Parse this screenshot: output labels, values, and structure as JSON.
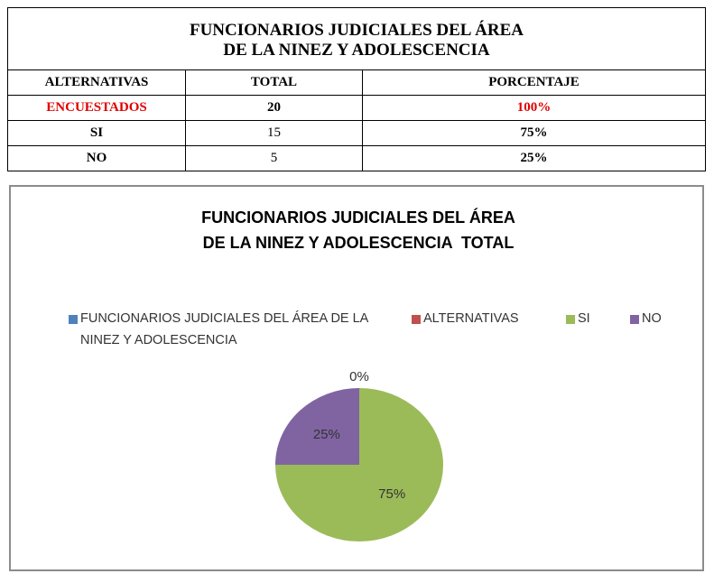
{
  "table": {
    "title": [
      "FUNCIONARIOS JUDICIALES DEL ÁREA",
      "DE LA NINEZ Y ADOLESCENCIA"
    ],
    "header": [
      "ALTERNATIVAS",
      "TOTAL",
      "PORCENTAJE"
    ],
    "rows": [
      [
        "ENCUESTADOS",
        20,
        "100%"
      ],
      [
        "SI",
        15,
        "75%"
      ],
      [
        "NO",
        5,
        "25%"
      ]
    ]
  },
  "chart_data": {
    "type": "pie",
    "title": [
      "FUNCIONARIOS JUDICIALES DEL ÁREA",
      "DE LA NINEZ Y ADOLESCENCIA  TOTAL"
    ],
    "categories": [
      "FUNCIONARIOS JUDICIALES DEL ÁREA DE LA NINEZ Y ADOLESCENCIA",
      "ALTERNATIVAS",
      "SI",
      "NO"
    ],
    "values": [
      0,
      0,
      75,
      25
    ],
    "value_labels": [
      "0%",
      null,
      "75%",
      "25%"
    ],
    "colors": [
      "#4f81bd",
      "#c0504d",
      "#9bbb59",
      "#8064a2"
    ],
    "legend": "top"
  }
}
